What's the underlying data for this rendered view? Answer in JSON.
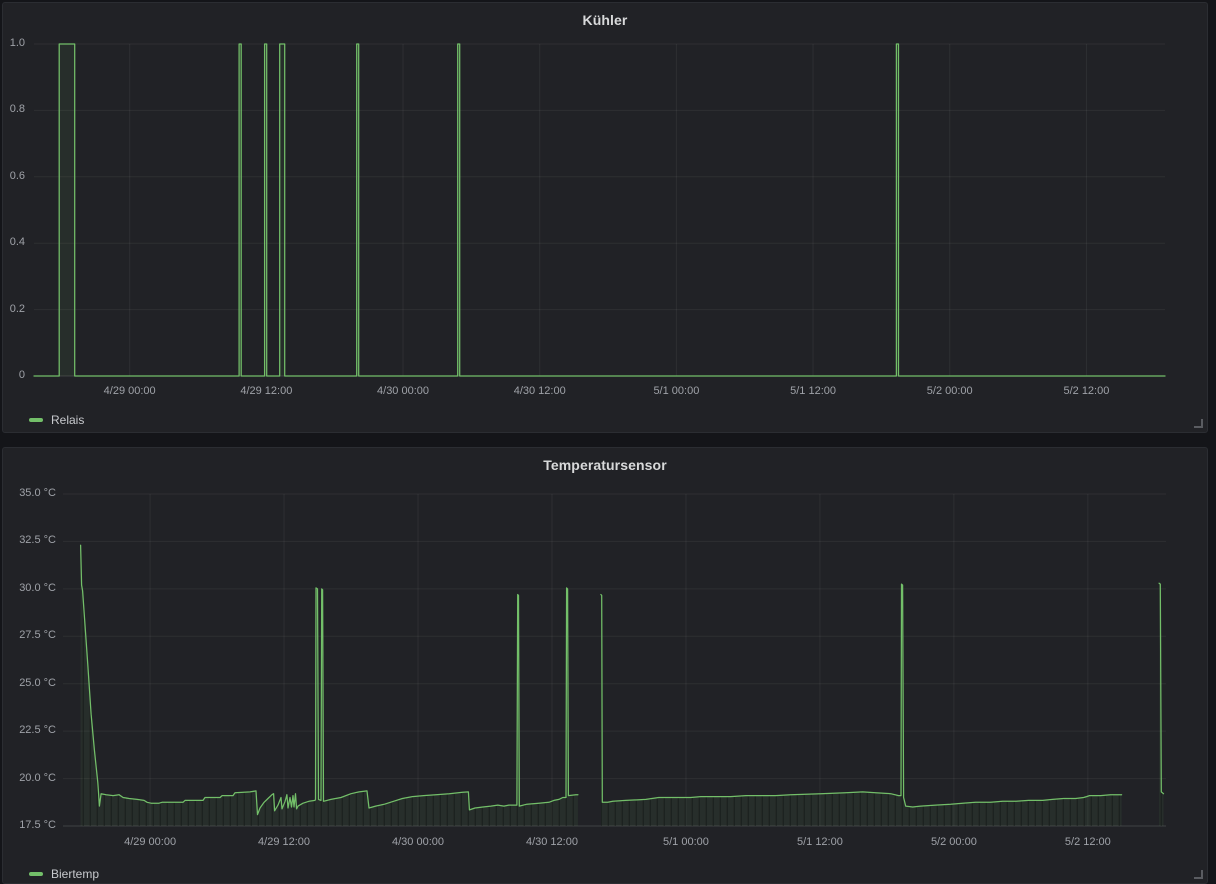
{
  "colors": {
    "page_bg": "#141519",
    "panel_bg": "#212226",
    "grid": "rgba(255,255,255,0.06)",
    "axis": "rgba(255,255,255,0.14)",
    "line_green": "#73bf69",
    "fill_green": "rgba(115,191,105,0.08)",
    "band_dark": "rgba(13,14,16,0.4)",
    "title_text": "#d8d9da",
    "tick_text": "#9fa2a8"
  },
  "panels": [
    {
      "title": "Kühler",
      "legend_label": "Relais",
      "y_tick_labels": [
        "1.0",
        "0.8",
        "0.6",
        "0.4",
        "0.2",
        "0"
      ],
      "x_tick_labels": [
        "4/29 00:00",
        "4/29 12:00",
        "4/30 00:00",
        "4/30 12:00",
        "5/1 00:00",
        "5/1 12:00",
        "5/2 00:00",
        "5/2 12:00"
      ]
    },
    {
      "title": "Temperatursensor",
      "legend_label": "Biertemp",
      "y_tick_labels": [
        "35.0 °C",
        "32.5 °C",
        "30.0 °C",
        "27.5 °C",
        "25.0 °C",
        "22.5 °C",
        "20.0 °C",
        "17.5 °C"
      ],
      "x_tick_labels": [
        "4/29 00:00",
        "4/29 12:00",
        "4/30 00:00",
        "4/30 12:00",
        "5/1 00:00",
        "5/1 12:00",
        "5/2 00:00",
        "5/2 12:00"
      ]
    }
  ],
  "chart_data": [
    {
      "type": "line",
      "title": "Kühler",
      "x_axis": {
        "unit": "time",
        "hours_range": [
          -8.4,
          90.9
        ],
        "tick_hours": [
          0,
          12,
          24,
          36,
          48,
          60,
          72,
          84
        ],
        "tick_time_labels": [
          "4/29 00:00",
          "4/29 12:00",
          "4/30 00:00",
          "4/30 12:00",
          "5/1 00:00",
          "5/1 12:00",
          "5/2 00:00",
          "5/2 12:00"
        ],
        "hours_relative_to": "4/29 00:00"
      },
      "y_axis": {
        "range": [
          0,
          1
        ],
        "ticks": [
          1.0,
          0.8,
          0.6,
          0.4,
          0.2,
          0
        ]
      },
      "series": [
        {
          "name": "Relais",
          "unit": "on/off",
          "baseline_value": 0,
          "pulse_value": 1,
          "pulses_on_hours": [
            [
              -6.19,
              -4.83
            ],
            [
              9.61,
              9.79
            ],
            [
              11.85,
              12.03
            ],
            [
              13.17,
              13.61
            ],
            [
              19.93,
              20.11
            ],
            [
              28.8,
              28.98
            ],
            [
              67.32,
              67.5
            ]
          ]
        }
      ]
    },
    {
      "type": "line",
      "title": "Temperatursensor",
      "x_axis": {
        "unit": "time",
        "hours_range": [
          -7.8,
          91.0
        ],
        "tick_hours": [
          0,
          12,
          24,
          36,
          48,
          60,
          72,
          84
        ],
        "tick_time_labels": [
          "4/29 00:00",
          "4/29 12:00",
          "4/30 00:00",
          "4/30 12:00",
          "5/1 00:00",
          "5/1 12:00",
          "5/2 00:00",
          "5/2 12:00"
        ],
        "hours_relative_to": "4/29 00:00"
      },
      "y_axis": {
        "range": [
          17.5,
          35.0
        ],
        "ticks": [
          35.0,
          32.5,
          30.0,
          27.5,
          25.0,
          22.5,
          20.0,
          17.5
        ],
        "unit": "°C"
      },
      "series": [
        {
          "name": "Biertemp",
          "unit": "°C",
          "points": [
            [
              -6.22,
              32.3
            ],
            [
              -6.13,
              30.2
            ],
            [
              -6.04,
              29.9
            ],
            [
              -5.58,
              26.0
            ],
            [
              -5.28,
              23.4
            ],
            [
              -4.99,
              21.5
            ],
            [
              -4.68,
              19.8
            ],
            [
              -4.63,
              19.35
            ],
            [
              -4.54,
              18.55
            ],
            [
              -4.39,
              19.2
            ],
            [
              -3.94,
              19.15
            ],
            [
              -3.31,
              19.1
            ],
            [
              -2.78,
              19.15
            ],
            [
              -2.42,
              19.0
            ],
            [
              -1.88,
              18.95
            ],
            [
              -1.16,
              18.9
            ],
            [
              -0.54,
              18.85
            ],
            [
              -0.27,
              18.75
            ],
            [
              0.09,
              18.7
            ],
            [
              0.81,
              18.7
            ],
            [
              1.07,
              18.75
            ],
            [
              2.95,
              18.75
            ],
            [
              3.13,
              18.85
            ],
            [
              4.74,
              18.85
            ],
            [
              4.92,
              19.0
            ],
            [
              6.27,
              19.0
            ],
            [
              6.45,
              19.1
            ],
            [
              7.43,
              19.1
            ],
            [
              7.61,
              19.25
            ],
            [
              8.95,
              19.3
            ],
            [
              9.49,
              19.35
            ],
            [
              9.62,
              18.1
            ],
            [
              9.85,
              18.45
            ],
            [
              10.21,
              18.75
            ],
            [
              10.56,
              18.95
            ],
            [
              10.92,
              19.15
            ],
            [
              11.06,
              19.2
            ],
            [
              11.15,
              18.3
            ],
            [
              11.46,
              18.6
            ],
            [
              11.73,
              19.0
            ],
            [
              11.82,
              18.4
            ],
            [
              12.09,
              18.8
            ],
            [
              12.26,
              19.15
            ],
            [
              12.35,
              18.45
            ],
            [
              12.53,
              19.0
            ],
            [
              12.67,
              18.5
            ],
            [
              12.8,
              19.1
            ],
            [
              12.89,
              18.5
            ],
            [
              13.03,
              19.2
            ],
            [
              13.12,
              18.4
            ],
            [
              13.25,
              18.55
            ],
            [
              13.7,
              18.7
            ],
            [
              14.23,
              18.8
            ],
            [
              14.77,
              18.85
            ],
            [
              14.82,
              18.9
            ],
            [
              14.86,
              30.05
            ],
            [
              15.0,
              30.0
            ],
            [
              15.09,
              18.9
            ],
            [
              15.31,
              18.85
            ],
            [
              15.37,
              30.0
            ],
            [
              15.45,
              29.95
            ],
            [
              15.53,
              18.8
            ],
            [
              16.2,
              18.9
            ],
            [
              17.1,
              19.0
            ],
            [
              18.0,
              19.2
            ],
            [
              18.71,
              19.3
            ],
            [
              19.43,
              19.35
            ],
            [
              19.61,
              18.45
            ],
            [
              20.2,
              18.55
            ],
            [
              21.0,
              18.65
            ],
            [
              21.8,
              18.8
            ],
            [
              22.6,
              18.95
            ],
            [
              23.5,
              19.05
            ],
            [
              24.5,
              19.1
            ],
            [
              25.6,
              19.15
            ],
            [
              26.8,
              19.2
            ],
            [
              28.0,
              19.28
            ],
            [
              28.51,
              19.3
            ],
            [
              28.6,
              18.35
            ],
            [
              29.1,
              18.45
            ],
            [
              29.81,
              18.5
            ],
            [
              30.53,
              18.55
            ],
            [
              31.15,
              18.6
            ],
            [
              31.69,
              18.55
            ],
            [
              32.14,
              18.6
            ],
            [
              32.86,
              18.6
            ],
            [
              32.93,
              29.7
            ],
            [
              33.0,
              29.65
            ],
            [
              33.07,
              18.55
            ],
            [
              33.75,
              18.65
            ],
            [
              34.82,
              18.7
            ],
            [
              35.72,
              18.75
            ],
            [
              36.17,
              18.85
            ],
            [
              36.62,
              18.9
            ],
            [
              36.97,
              19.0
            ],
            [
              37.26,
              19.0
            ],
            [
              37.31,
              30.05
            ],
            [
              37.4,
              30.0
            ],
            [
              37.47,
              19.1
            ],
            [
              38.14,
              19.15
            ],
            [
              38.32,
              19.15
            ],
            null,
            [
              40.38,
              29.7
            ],
            [
              40.45,
              29.65
            ],
            [
              40.51,
              18.75
            ],
            [
              41.0,
              18.75
            ],
            [
              41.45,
              18.8
            ],
            [
              42.61,
              18.85
            ],
            [
              44.4,
              18.9
            ],
            [
              45.57,
              19.0
            ],
            [
              48.43,
              19.0
            ],
            [
              49.33,
              19.05
            ],
            [
              52.01,
              19.05
            ],
            [
              53.36,
              19.1
            ],
            [
              56.04,
              19.1
            ],
            [
              57.39,
              19.15
            ],
            [
              60.07,
              19.2
            ],
            [
              62.31,
              19.25
            ],
            [
              63.83,
              19.3
            ],
            [
              64.99,
              19.25
            ],
            [
              66.34,
              19.2
            ],
            [
              67.05,
              19.1
            ],
            [
              67.26,
              19.1
            ],
            [
              67.31,
              30.25
            ],
            [
              67.41,
              30.2
            ],
            [
              67.5,
              19.0
            ],
            [
              67.68,
              18.55
            ],
            [
              68.31,
              18.5
            ],
            [
              69.02,
              18.55
            ],
            [
              70.37,
              18.6
            ],
            [
              71.71,
              18.65
            ],
            [
              72.78,
              18.7
            ],
            [
              73.95,
              18.75
            ],
            [
              75.29,
              18.75
            ],
            [
              76.37,
              18.8
            ],
            [
              77.53,
              18.8
            ],
            [
              78.69,
              18.85
            ],
            [
              79.95,
              18.85
            ],
            [
              80.84,
              18.9
            ],
            [
              81.83,
              18.95
            ],
            [
              82.9,
              18.95
            ],
            [
              83.62,
              19.0
            ],
            [
              83.89,
              19.05
            ],
            [
              84.15,
              19.1
            ],
            [
              85.14,
              19.1
            ],
            [
              86.03,
              19.15
            ],
            [
              87.02,
              19.15
            ],
            null,
            [
              90.38,
              30.3
            ],
            [
              90.49,
              30.25
            ],
            [
              90.58,
              19.3
            ],
            [
              90.78,
              19.2
            ]
          ]
        }
      ]
    }
  ]
}
